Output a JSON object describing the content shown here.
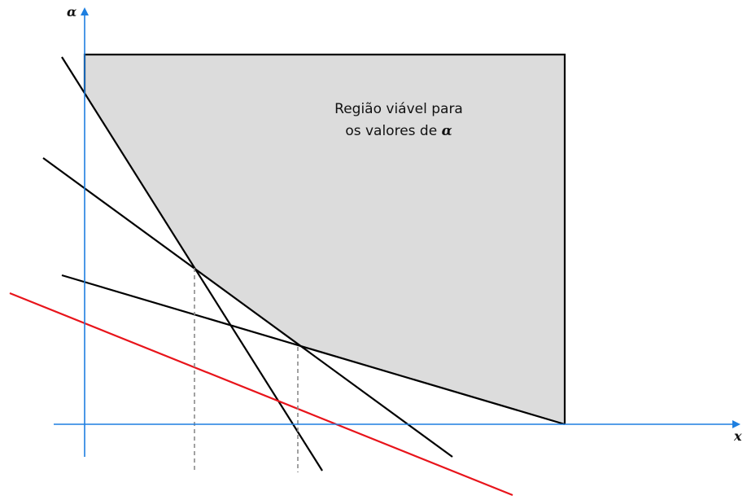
{
  "diagram": {
    "y_axis_label": "α",
    "x_axis_label": "x",
    "region_label_line1": "Região viável para",
    "region_label_line2_text": "os valores de ",
    "region_label_line2_symbol": "α",
    "colors": {
      "axis": "#1e7fe0",
      "region_fill": "#dcdcdc",
      "region_stroke": "#000000",
      "constraint_line": "#000000",
      "objective_line": "#e8141b",
      "guide_line": "#8a8a8a"
    }
  }
}
